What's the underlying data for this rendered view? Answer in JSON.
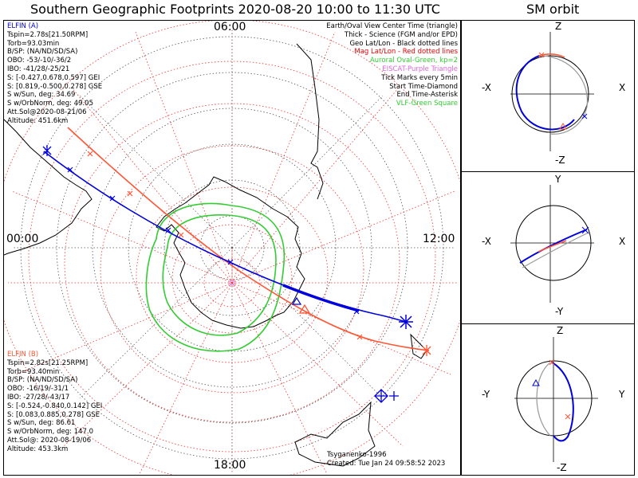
{
  "title": "Southern Geographic Footprints 2020-08-20 10:00 to 11:30 UTC",
  "sm_title": "SM orbit",
  "clock_labels": {
    "top": "06:00",
    "left": "00:00",
    "right": "12:00",
    "bottom": "18:00"
  },
  "elfin_a": {
    "lines": [
      "ELFIN (A)",
      "Tspin=2.78s[21.50RPM]",
      "Torb=93.03min",
      "B/SP: (NA/ND/SD/SA)",
      "OBO: -53/-10/-36/2",
      "IBO: -41/28/-25/21",
      "S: [-0.427,0.678,0.597] GEI",
      "S: [0.819,-0.500,0.278] GSE",
      "S w/Sun, deg: 34.69",
      "S w/OrbNorm, deg: 49.05",
      "Att.Sol@2020-08-21/06",
      "Altitude: 451.6km"
    ],
    "color": "#0000dd"
  },
  "elfin_b": {
    "lines": [
      "ELFIN (B)",
      "Tspin=2.82s[21.25RPM]",
      "Torb=93.40min",
      "B/SP: (NA/ND/SD/SA)",
      "OBO: -16/19/-31/1",
      "IBO: -27/28/-43/17",
      "S: [-0.524,-0.840,0.142] GEI",
      "S: [0.083,0.885,0.278] GSE",
      "S w/Sun, deg: 86.61",
      "S w/OrbNorm, deg: 147.0",
      "Att.Sol@: 2020-08-19/06",
      "Altitude: 453.3km"
    ],
    "color": "#ff5533"
  },
  "legend": [
    {
      "text": "Earth/Oval View Center Time (triangle)",
      "color": "#000000"
    },
    {
      "text": "Thick - Science (FGM and/or EPD)",
      "color": "#000000"
    },
    {
      "text": "Geo Lat/Lon - Black dotted lines",
      "color": "#000000"
    },
    {
      "text": "Mag Lat/Lon - Red dotted lines",
      "color": "#ee0000"
    },
    {
      "text": "Auroral Oval-Green, kp=2",
      "color": "#33cc33"
    },
    {
      "text": "EISCAT-Purple Triangle",
      "color": "#dd66dd"
    },
    {
      "text": "Tick Marks every 5min",
      "color": "#000000"
    },
    {
      "text": "Start Time-Diamond",
      "color": "#000000"
    },
    {
      "text": "End Time-Asterisk",
      "color": "#000000"
    },
    {
      "text": "VLF-Green Square",
      "color": "#33cc33"
    }
  ],
  "credits": {
    "line1": "Tsyganenko-1996",
    "line2": "Created: Tue Jan 24 09:58:52 2023"
  },
  "sm_panels": [
    {
      "top": "Z",
      "bottom": "-Z",
      "left": "-X",
      "right": "X"
    },
    {
      "top": "Y",
      "bottom": "-Y",
      "left": "-X",
      "right": "X"
    },
    {
      "top": "Z",
      "bottom": "-Z",
      "left": "-Y",
      "right": "Y"
    }
  ],
  "colors": {
    "elfin_a": "#0000dd",
    "elfin_b": "#ff5533",
    "oval": "#33cc33",
    "grid_mag": "#ee3333",
    "grid_geo": "#555555",
    "eiscat": "#dd66dd"
  }
}
